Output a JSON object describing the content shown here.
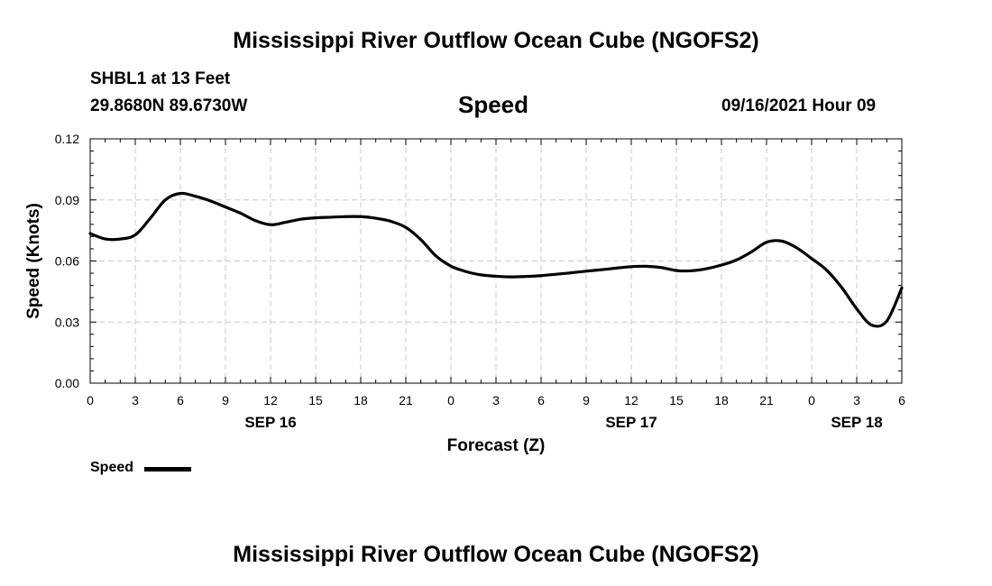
{
  "header": {
    "title": "Mississippi River Outflow Ocean Cube (NGOFS2)",
    "station": "SHBL1 at 13 Feet",
    "coords": "29.8680N  89.6730W",
    "variable": "Speed",
    "datetime": "09/16/2021 Hour 09"
  },
  "footer": {
    "title": "Mississippi River Outflow Ocean Cube (NGOFS2)"
  },
  "legend": {
    "label": "Speed"
  },
  "chart_data": {
    "type": "line",
    "title": "Speed",
    "xlabel": "Forecast (Z)",
    "ylabel": "Speed (Knots)",
    "xlim": [
      0,
      54
    ],
    "ylim": [
      0,
      0.12
    ],
    "grid": true,
    "x_ticks": [
      0,
      3,
      6,
      9,
      12,
      15,
      18,
      21,
      24,
      27,
      30,
      33,
      36,
      39,
      42,
      45,
      48,
      51,
      54
    ],
    "x_tick_labels": [
      "0",
      "3",
      "6",
      "9",
      "12",
      "15",
      "18",
      "21",
      "0",
      "3",
      "6",
      "9",
      "12",
      "15",
      "18",
      "21",
      "0",
      "3",
      "6"
    ],
    "y_ticks": [
      0,
      0.03,
      0.06,
      0.09,
      0.12
    ],
    "y_tick_labels": [
      "0.00",
      "0.03",
      "0.06",
      "0.09",
      "0.12"
    ],
    "day_labels": [
      {
        "x": 12,
        "label": "SEP 16"
      },
      {
        "x": 36,
        "label": "SEP 17"
      },
      {
        "x": 51,
        "label": "SEP 18"
      }
    ],
    "series": [
      {
        "name": "Speed",
        "x": [
          0,
          1,
          2,
          3,
          4,
          5,
          6,
          7,
          8,
          9,
          10,
          11,
          12,
          13,
          14,
          15,
          16,
          17,
          18,
          19,
          20,
          21,
          22,
          23,
          24,
          25,
          26,
          27,
          28,
          29,
          30,
          31,
          32,
          33,
          34,
          35,
          36,
          37,
          38,
          39,
          40,
          41,
          42,
          43,
          44,
          45,
          46,
          47,
          48,
          49,
          50,
          51,
          52,
          53,
          54
        ],
        "values": [
          0.0735,
          0.0708,
          0.0708,
          0.0728,
          0.081,
          0.09,
          0.0932,
          0.0918,
          0.0895,
          0.0865,
          0.0835,
          0.0798,
          0.0778,
          0.079,
          0.0805,
          0.0812,
          0.0815,
          0.0818,
          0.0818,
          0.081,
          0.0795,
          0.0765,
          0.0705,
          0.0625,
          0.0575,
          0.0548,
          0.0532,
          0.0525,
          0.0522,
          0.0524,
          0.0528,
          0.0535,
          0.0542,
          0.055,
          0.0557,
          0.0565,
          0.0572,
          0.0574,
          0.0568,
          0.0553,
          0.0552,
          0.0562,
          0.058,
          0.0605,
          0.0645,
          0.0692,
          0.0698,
          0.0665,
          0.0612,
          0.0555,
          0.047,
          0.0365,
          0.0285,
          0.0305,
          0.0468
        ]
      }
    ]
  }
}
